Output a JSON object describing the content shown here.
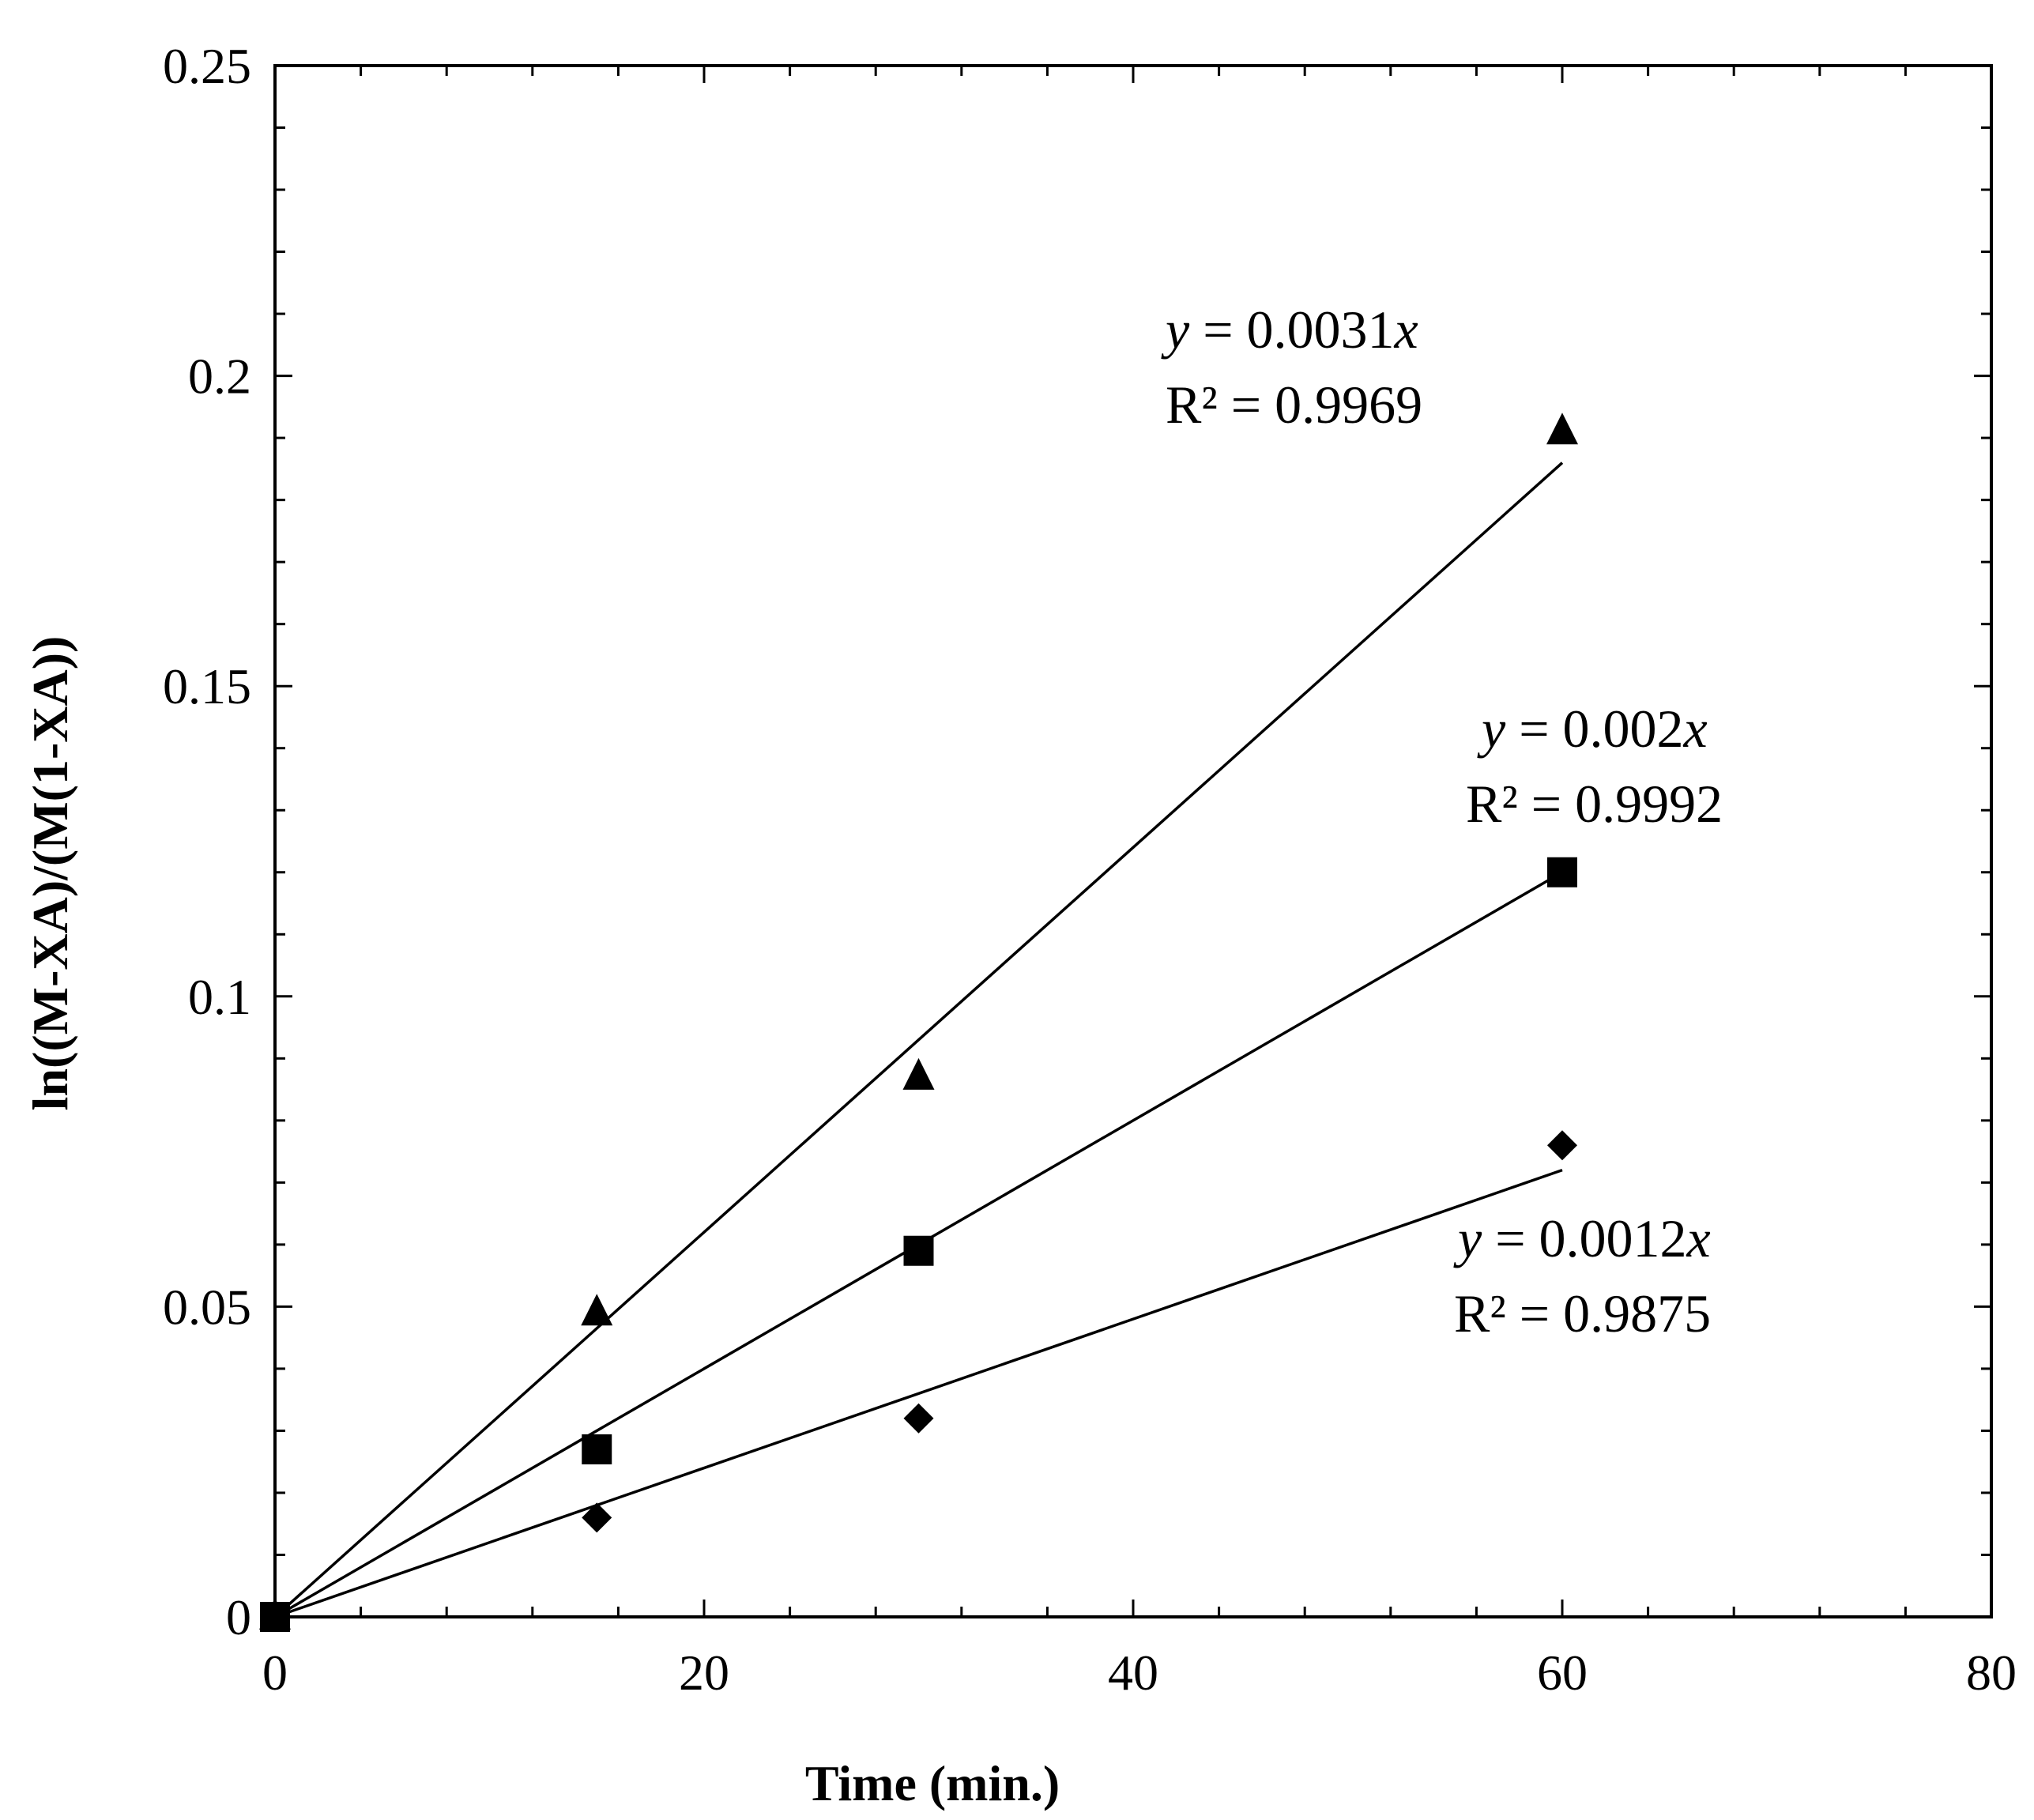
{
  "chart_data": {
    "type": "scatter",
    "title": "",
    "xlabel": "Time (min.)",
    "ylabel": "ln((M-XA)/(M(1-XA))",
    "xlim": [
      0,
      80
    ],
    "ylim": [
      0,
      0.25
    ],
    "x_ticks": [
      0,
      20,
      40,
      60,
      80
    ],
    "x_tick_labels": [
      "0",
      "20",
      "40",
      "60",
      "80"
    ],
    "y_ticks": [
      0,
      0.05,
      0.1,
      0.15,
      0.2,
      0.25
    ],
    "y_tick_labels": [
      "0",
      "0.05",
      "0.1",
      "0.15",
      "0.2",
      "0.25"
    ],
    "grid": false,
    "legend": "none",
    "series": [
      {
        "name": "triangle",
        "marker": "triangle",
        "x": [
          0,
          15,
          30,
          60
        ],
        "y": [
          0,
          0.049,
          0.087,
          0.191
        ],
        "trendline": {
          "slope": 0.0031,
          "intercept": 0,
          "x_range": [
            0,
            60
          ],
          "equation_var": "y",
          "equation_rest": " = 0.0031",
          "equation_x": "x",
          "r2": "R² = 0.9969"
        }
      },
      {
        "name": "square",
        "marker": "square",
        "x": [
          0,
          15,
          30,
          60
        ],
        "y": [
          0,
          0.027,
          0.059,
          0.12
        ],
        "trendline": {
          "slope": 0.002,
          "intercept": 0,
          "x_range": [
            0,
            60
          ],
          "equation_var": "y",
          "equation_rest": " = 0.002",
          "equation_x": "x",
          "r2": "R² = 0.9992"
        }
      },
      {
        "name": "diamond",
        "marker": "diamond",
        "x": [
          0,
          15,
          30,
          60
        ],
        "y": [
          0,
          0.016,
          0.032,
          0.076
        ],
        "trendline": {
          "slope": 0.0012,
          "intercept": 0,
          "x_range": [
            0,
            60
          ],
          "equation_var": "y",
          "equation_rest": " = 0.0012",
          "equation_x": "x",
          "r2": "R² = 0.9875"
        }
      }
    ],
    "colors": {
      "ink": "#000000",
      "background": "#ffffff"
    }
  }
}
